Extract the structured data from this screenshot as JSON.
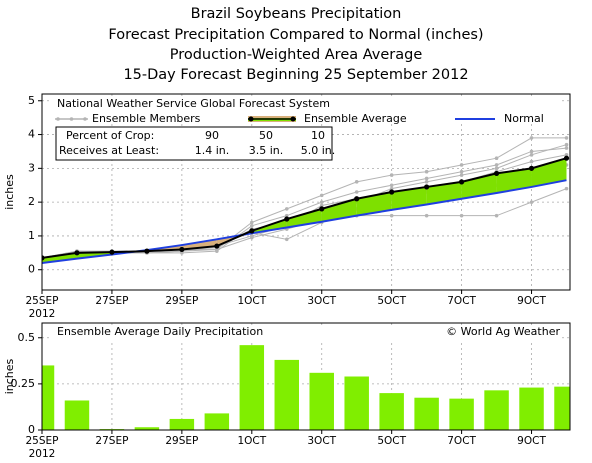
{
  "title_lines": [
    "Brazil Soybeans Precipitation",
    "Forecast Precipitation Compared to Normal (inches)",
    "Production-Weighted Area Average",
    "15-Day Forecast Beginning 25 September 2012"
  ],
  "chart_data": [
    {
      "type": "line",
      "source": "National Weather Service Global Forecast System",
      "ylabel": "inches",
      "categories": [
        "25SEP",
        null,
        "27SEP",
        null,
        "29SEP",
        null,
        "1OCT",
        null,
        "3OCT",
        null,
        "5OCT",
        null,
        "7OCT",
        null,
        "9OCT",
        null
      ],
      "year_label": "2012",
      "xlim": [
        0,
        15.1
      ],
      "ylim": [
        -0.6,
        5.2
      ],
      "yticks": [
        0,
        1,
        2,
        3,
        4,
        5
      ],
      "grid": true,
      "fill_above": "#7ee000",
      "fill_below": "#d8b07c",
      "ensemble_members": {
        "name": "Ensemble Members",
        "color": "#b4b4b4",
        "members": [
          [
            0.3,
            0.55,
            0.55,
            0.55,
            0.6,
            0.6,
            1.4,
            1.8,
            2.2,
            2.6,
            2.8,
            2.9,
            3.1,
            3.3,
            3.9,
            3.9
          ],
          [
            0.35,
            0.5,
            0.5,
            0.5,
            0.55,
            0.6,
            0.95,
            1.2,
            1.5,
            1.6,
            1.6,
            1.6,
            1.6,
            1.6,
            2.0,
            2.4
          ],
          [
            0.3,
            0.5,
            0.5,
            0.55,
            0.6,
            0.65,
            1.2,
            1.4,
            1.6,
            2.0,
            2.4,
            2.6,
            2.8,
            3.0,
            3.4,
            3.7
          ],
          [
            0.35,
            0.55,
            0.5,
            0.5,
            0.55,
            0.7,
            1.0,
            1.3,
            1.9,
            2.1,
            2.2,
            2.4,
            2.5,
            2.5,
            2.7,
            3.1
          ],
          [
            0.3,
            0.5,
            0.55,
            0.5,
            0.5,
            0.55,
            1.3,
            1.6,
            2.0,
            2.3,
            2.5,
            2.7,
            2.9,
            3.1,
            3.5,
            3.6
          ],
          [
            0.35,
            0.55,
            0.5,
            0.55,
            0.6,
            0.75,
            1.1,
            0.9,
            1.4,
            1.8,
            2.1,
            2.3,
            2.6,
            2.9,
            3.2,
            3.4
          ]
        ]
      },
      "series": [
        {
          "name": "Ensemble Average",
          "color": "#000000",
          "values": [
            0.35,
            0.5,
            0.52,
            0.55,
            0.6,
            0.7,
            1.15,
            1.5,
            1.8,
            2.1,
            2.3,
            2.45,
            2.6,
            2.85,
            3.0,
            3.3
          ]
        },
        {
          "name": "Normal",
          "color": "#1f3fe0",
          "values": [
            0.2,
            0.33,
            0.45,
            0.58,
            0.73,
            0.9,
            1.08,
            1.25,
            1.42,
            1.6,
            1.77,
            1.93,
            2.1,
            2.27,
            2.45,
            2.65
          ]
        }
      ],
      "crop_table": {
        "row_labels": [
          "Percent of Crop:",
          "Receives at Least:"
        ],
        "percent": [
          "90",
          "50",
          "10"
        ],
        "amount": [
          "1.4 in.",
          "3.5 in.",
          "5.0 in."
        ]
      }
    },
    {
      "type": "bar",
      "title": "Ensemble Average Daily Precipitation",
      "credit": "© World Ag Weather",
      "ylabel": "inches",
      "categories": [
        "25SEP",
        null,
        "27SEP",
        null,
        "29SEP",
        null,
        "1OCT",
        null,
        "3OCT",
        null,
        "5OCT",
        null,
        "7OCT",
        null,
        "9OCT",
        null
      ],
      "year_label": "2012",
      "xlim": [
        0,
        15.1
      ],
      "ylim": [
        0,
        0.58
      ],
      "yticks": [
        0,
        0.25,
        0.5
      ],
      "grid": true,
      "color": "#80ee00",
      "values": [
        0.35,
        0.16,
        0.005,
        0.015,
        0.06,
        0.09,
        0.46,
        0.38,
        0.31,
        0.29,
        0.2,
        0.175,
        0.17,
        0.215,
        0.23,
        0.235
      ]
    }
  ]
}
